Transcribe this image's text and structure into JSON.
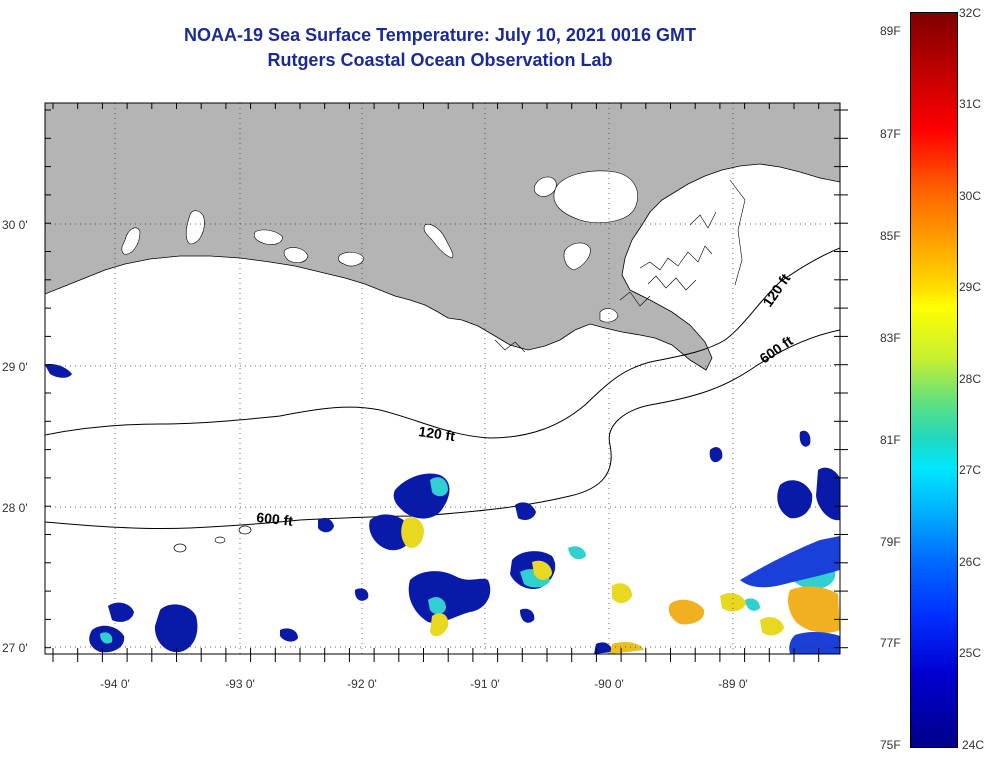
{
  "title_line1": "NOAA-19 Sea Surface Temperature:  July 10, 2021 0016 GMT",
  "title_line2": "Rutgers Coastal Ocean Observation Lab",
  "map": {
    "lon_ticks": [
      "-94 0'",
      "-93 0'",
      "-92 0'",
      "-91 0'",
      "-90 0'",
      "-89 0'"
    ],
    "lat_ticks": [
      "30 0'",
      "29 0'",
      "28 0'",
      "27 0'"
    ],
    "contour_labels": [
      "120 ft",
      "600 ft",
      "120 ft",
      "600 ft"
    ],
    "colors": {
      "land": "#b4b4b4",
      "water": "#ffffff",
      "cloud_mask": "#ffffff"
    }
  },
  "colorbar": {
    "celsius": [
      "32C",
      "31C",
      "30C",
      "29C",
      "28C",
      "27C",
      "26C",
      "25C",
      "24C"
    ],
    "fahrenheit": [
      "89F",
      "87F",
      "85F",
      "83F",
      "81F",
      "79F",
      "77F",
      "75F"
    ]
  }
}
